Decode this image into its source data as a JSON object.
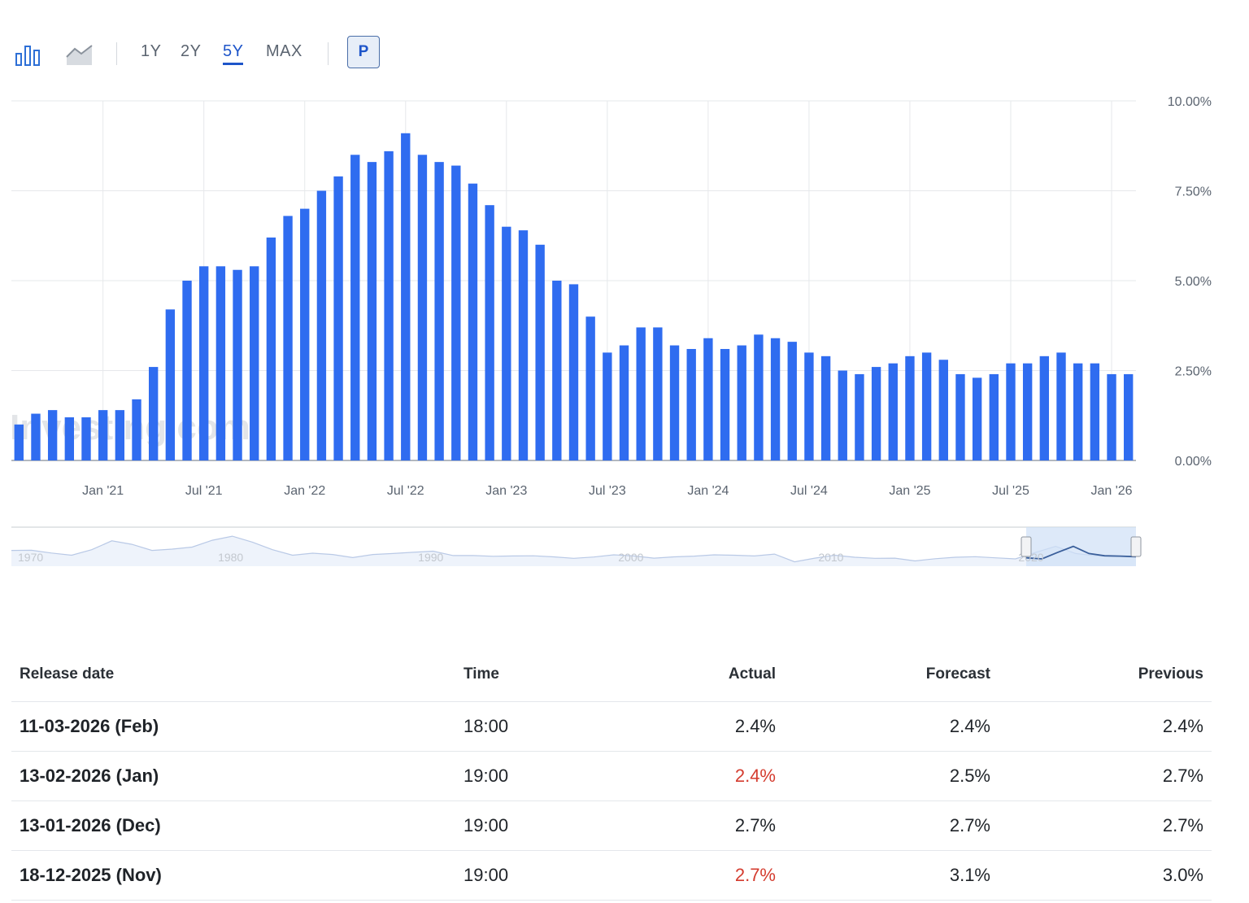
{
  "toolbar": {
    "chart_type_icons": [
      "bar-chart-icon",
      "line-chart-icon"
    ],
    "ranges": [
      "1Y",
      "2Y",
      "5Y",
      "MAX"
    ],
    "active_range": "5Y",
    "p_button": "P"
  },
  "colors": {
    "bar": "#2f6cf0",
    "accent": "#1e55c9",
    "negative": "#d43c2f"
  },
  "watermark": "Investing.com",
  "chart_data": {
    "type": "bar",
    "y_ticks": [
      "0.00%",
      "2.50%",
      "5.00%",
      "7.50%",
      "10.00%"
    ],
    "ylim": [
      0,
      10
    ],
    "y_axis_position": "right",
    "grid": true,
    "x_tick_labels": [
      "Jan '21",
      "Jul '21",
      "Jan '22",
      "Jul '22",
      "Jan '23",
      "Jul '23",
      "Jan '24",
      "Jul '24",
      "Jan '25",
      "Jul '25",
      "Jan '26"
    ],
    "categories": [
      "Aug '20",
      "Sep '20",
      "Oct '20",
      "Nov '20",
      "Dec '20",
      "Jan '21",
      "Feb '21",
      "Mar '21",
      "Apr '21",
      "May '21",
      "Jun '21",
      "Jul '21",
      "Aug '21",
      "Sep '21",
      "Oct '21",
      "Nov '21",
      "Dec '21",
      "Jan '22",
      "Feb '22",
      "Mar '22",
      "Apr '22",
      "May '22",
      "Jun '22",
      "Jul '22",
      "Aug '22",
      "Sep '22",
      "Oct '22",
      "Nov '22",
      "Dec '22",
      "Jan '23",
      "Feb '23",
      "Mar '23",
      "Apr '23",
      "May '23",
      "Jun '23",
      "Jul '23",
      "Aug '23",
      "Sep '23",
      "Oct '23",
      "Nov '23",
      "Dec '23",
      "Jan '24",
      "Feb '24",
      "Mar '24",
      "Apr '24",
      "May '24",
      "Jun '24",
      "Jul '24",
      "Aug '24",
      "Sep '24",
      "Oct '24",
      "Nov '24",
      "Dec '24",
      "Jan '25",
      "Feb '25",
      "Mar '25",
      "Apr '25",
      "May '25",
      "Jun '25",
      "Jul '25",
      "Aug '25",
      "Sep '25",
      "Oct '25",
      "Nov '25",
      "Dec '25",
      "Jan '26",
      "Feb '26"
    ],
    "values": [
      1.0,
      1.3,
      1.4,
      1.2,
      1.2,
      1.4,
      1.4,
      1.7,
      2.6,
      4.2,
      5.0,
      5.4,
      5.4,
      5.3,
      5.4,
      6.2,
      6.8,
      7.0,
      7.5,
      7.9,
      8.5,
      8.3,
      8.6,
      9.1,
      8.5,
      8.3,
      8.2,
      7.7,
      7.1,
      6.5,
      6.4,
      6.0,
      5.0,
      4.9,
      4.0,
      3.0,
      3.2,
      3.7,
      3.7,
      3.2,
      3.1,
      3.4,
      3.1,
      3.2,
      3.5,
      3.4,
      3.3,
      3.0,
      2.9,
      2.5,
      2.4,
      2.6,
      2.7,
      2.9,
      3.0,
      2.8,
      2.4,
      2.3,
      2.4,
      2.7,
      2.7,
      2.9,
      3.0,
      2.7,
      2.7,
      2.4,
      2.4
    ],
    "navigator": {
      "year_labels": [
        "1970",
        "1980",
        "1990",
        "2000",
        "2010",
        "2020"
      ],
      "series": [
        5.8,
        5.9,
        4.4,
        3.2,
        6.2,
        11.0,
        9.1,
        5.8,
        6.5,
        7.6,
        11.3,
        13.5,
        10.3,
        6.2,
        3.2,
        4.3,
        3.6,
        1.9,
        3.6,
        4.1,
        4.8,
        5.4,
        3.0,
        3.0,
        2.6,
        2.8,
        2.9,
        2.3,
        1.5,
        2.2,
        3.4,
        2.8,
        1.6,
        2.3,
        2.7,
        3.4,
        3.2,
        2.8,
        3.8,
        -0.4,
        1.6,
        3.2,
        2.1,
        1.5,
        1.6,
        0.1,
        1.3,
        2.1,
        2.4,
        1.8,
        1.2,
        4.7,
        8.0,
        4.1,
        2.9,
        2.7,
        2.4
      ]
    }
  },
  "table": {
    "headers": {
      "date": "Release date",
      "time": "Time",
      "actual": "Actual",
      "forecast": "Forecast",
      "previous": "Previous"
    },
    "rows": [
      {
        "date": "11-03-2026 (Feb)",
        "time": "18:00",
        "actual": "2.4%",
        "actual_negative": false,
        "forecast": "2.4%",
        "previous": "2.4%"
      },
      {
        "date": "13-02-2026 (Jan)",
        "time": "19:00",
        "actual": "2.4%",
        "actual_negative": true,
        "forecast": "2.5%",
        "previous": "2.7%"
      },
      {
        "date": "13-01-2026 (Dec)",
        "time": "19:00",
        "actual": "2.7%",
        "actual_negative": false,
        "forecast": "2.7%",
        "previous": "2.7%"
      },
      {
        "date": "18-12-2025 (Nov)",
        "time": "19:00",
        "actual": "2.7%",
        "actual_negative": true,
        "forecast": "3.1%",
        "previous": "3.0%"
      }
    ]
  }
}
